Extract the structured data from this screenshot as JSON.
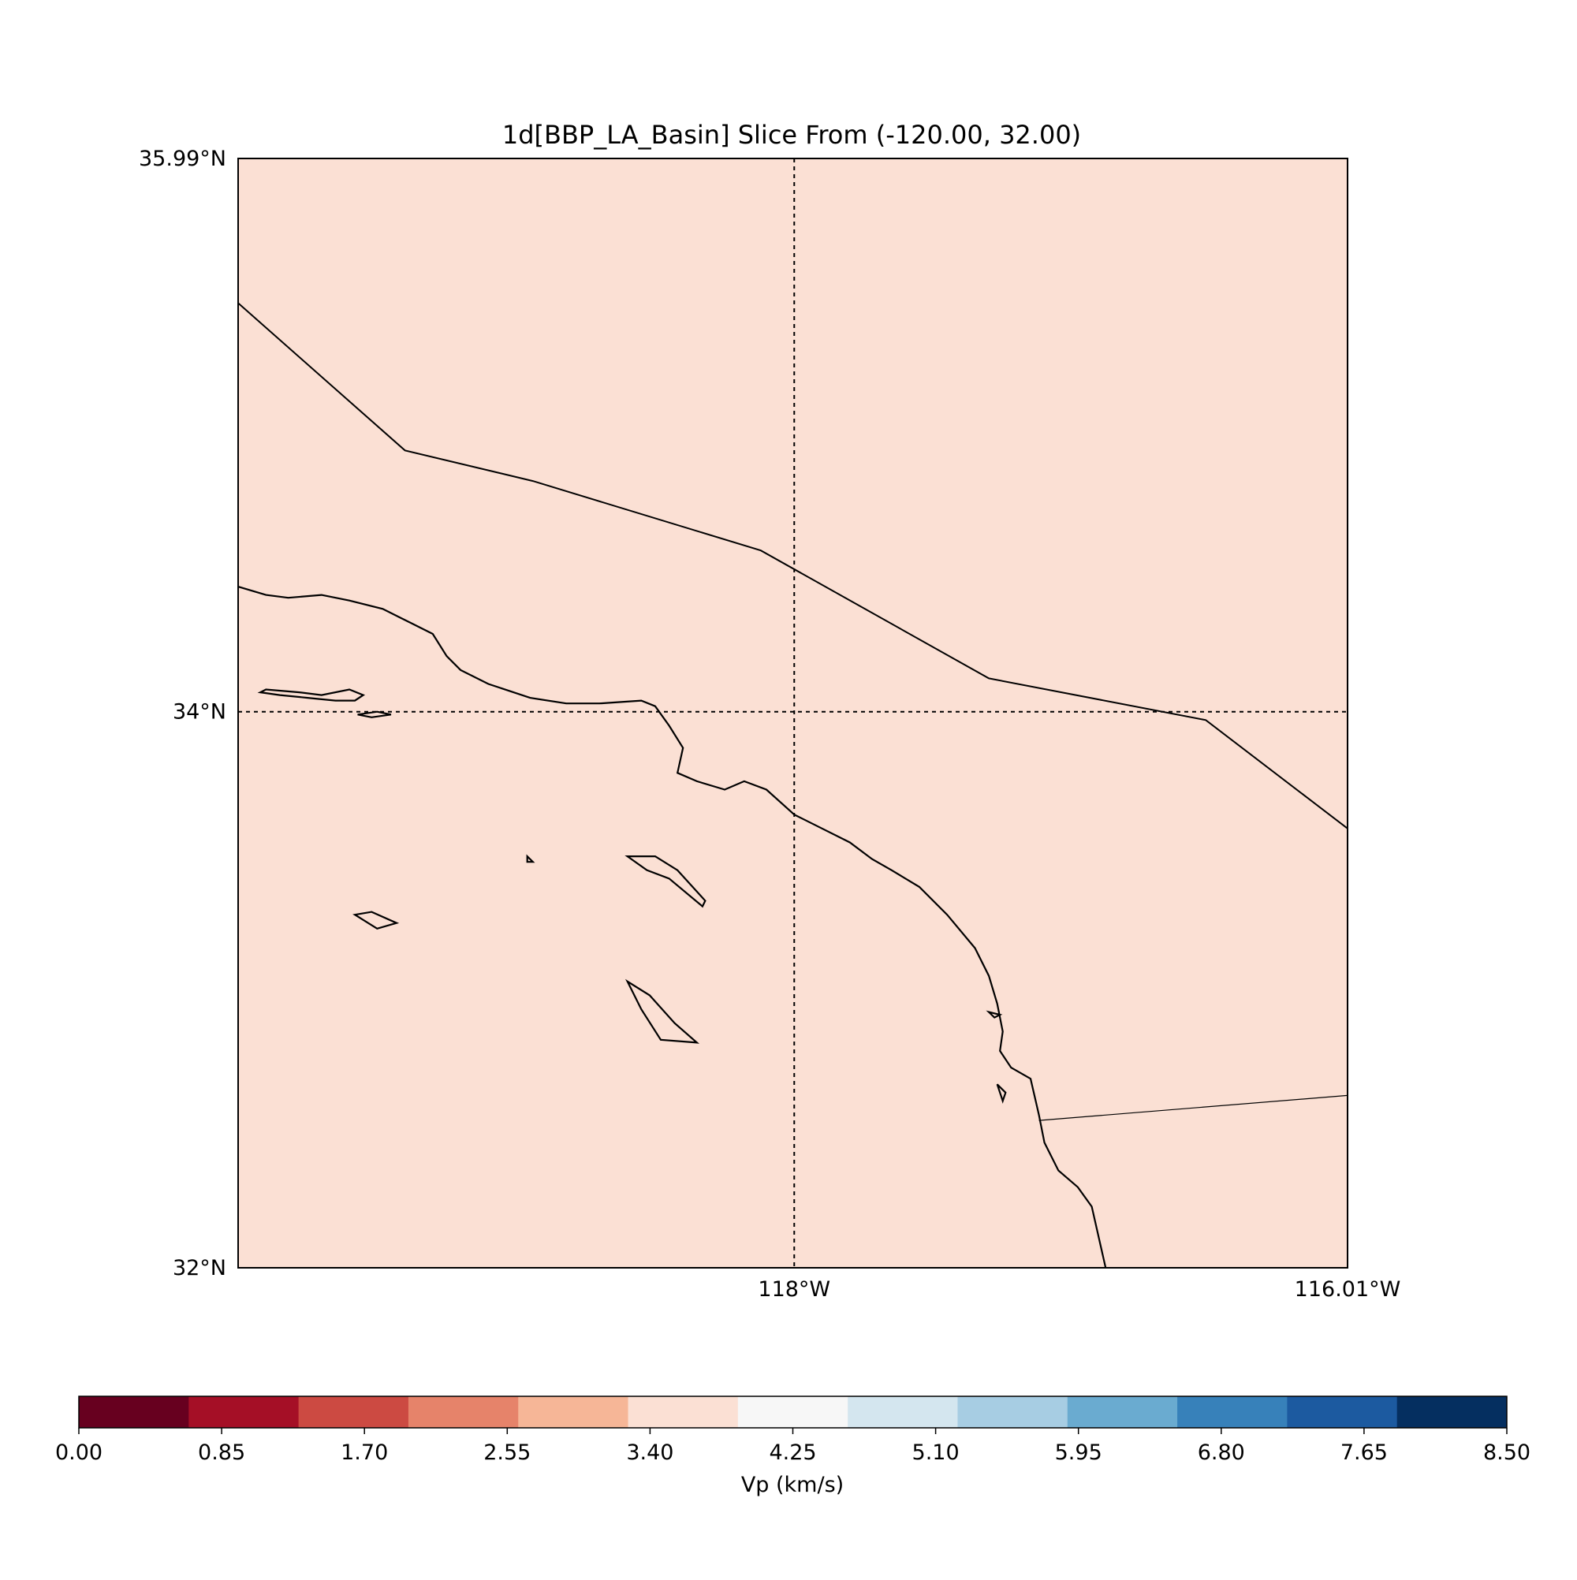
{
  "title": "1d[BBP_LA_Basin] Slice From (-120.00, 32.00)",
  "map": {
    "fill_color": "#fbe0d4",
    "lat_labels": [
      {
        "lat": 35.99,
        "text": "35.99°N"
      },
      {
        "lat": 34.0,
        "text": "34°N"
      },
      {
        "lat": 32.0,
        "text": "32°N"
      }
    ],
    "lon_labels": [
      {
        "lon": -118.0,
        "text": "118°W"
      },
      {
        "lon": -116.01,
        "text": "116.01°W"
      }
    ],
    "gridlines": {
      "lon": [
        -118.0
      ],
      "lat": [
        34.0
      ]
    },
    "extent": {
      "lon": [
        -120.0,
        -116.01
      ],
      "lat": [
        32.0,
        35.99
      ]
    },
    "boundaries": {
      "state_line": [
        [
          -120.0,
          35.47
        ],
        [
          -119.4,
          34.94
        ],
        [
          -118.94,
          34.83
        ],
        [
          -118.12,
          34.58
        ],
        [
          -117.3,
          34.12
        ],
        [
          -116.52,
          33.97
        ],
        [
          -116.01,
          33.58
        ]
      ],
      "international_border": [
        [
          -117.12,
          32.53
        ],
        [
          -116.01,
          32.62
        ]
      ]
    },
    "coastline": [
      [
        -120.0,
        34.45
      ],
      [
        -119.9,
        34.42
      ],
      [
        -119.82,
        34.41
      ],
      [
        -119.7,
        34.42
      ],
      [
        -119.6,
        34.4
      ],
      [
        -119.48,
        34.37
      ],
      [
        -119.38,
        34.32
      ],
      [
        -119.3,
        34.28
      ],
      [
        -119.25,
        34.2
      ],
      [
        -119.2,
        34.15
      ],
      [
        -119.1,
        34.1
      ],
      [
        -118.95,
        34.05
      ],
      [
        -118.82,
        34.03
      ],
      [
        -118.7,
        34.03
      ],
      [
        -118.55,
        34.04
      ],
      [
        -118.5,
        34.02
      ],
      [
        -118.45,
        33.95
      ],
      [
        -118.4,
        33.87
      ],
      [
        -118.42,
        33.78
      ],
      [
        -118.35,
        33.75
      ],
      [
        -118.25,
        33.72
      ],
      [
        -118.18,
        33.75
      ],
      [
        -118.1,
        33.72
      ],
      [
        -118.0,
        33.63
      ],
      [
        -117.9,
        33.58
      ],
      [
        -117.8,
        33.53
      ],
      [
        -117.72,
        33.47
      ],
      [
        -117.65,
        33.43
      ],
      [
        -117.55,
        33.37
      ],
      [
        -117.45,
        33.27
      ],
      [
        -117.35,
        33.15
      ],
      [
        -117.3,
        33.05
      ],
      [
        -117.27,
        32.95
      ],
      [
        -117.25,
        32.85
      ],
      [
        -117.26,
        32.78
      ],
      [
        -117.22,
        32.72
      ],
      [
        -117.15,
        32.68
      ],
      [
        -117.12,
        32.55
      ],
      [
        -117.1,
        32.45
      ],
      [
        -117.05,
        32.35
      ],
      [
        -116.98,
        32.29
      ],
      [
        -116.93,
        32.22
      ],
      [
        -116.88,
        32.0
      ]
    ],
    "islands": [
      [
        [
          -119.92,
          34.07
        ],
        [
          -119.85,
          34.06
        ],
        [
          -119.75,
          34.05
        ],
        [
          -119.65,
          34.04
        ],
        [
          -119.58,
          34.04
        ],
        [
          -119.55,
          34.06
        ],
        [
          -119.6,
          34.08
        ],
        [
          -119.7,
          34.06
        ],
        [
          -119.78,
          34.07
        ],
        [
          -119.9,
          34.08
        ]
      ],
      [
        [
          -119.57,
          33.99
        ],
        [
          -119.5,
          34.0
        ],
        [
          -119.45,
          33.99
        ],
        [
          -119.52,
          33.98
        ]
      ],
      [
        [
          -118.6,
          33.48
        ],
        [
          -118.53,
          33.43
        ],
        [
          -118.45,
          33.4
        ],
        [
          -118.33,
          33.3
        ],
        [
          -118.32,
          33.32
        ],
        [
          -118.42,
          33.43
        ],
        [
          -118.5,
          33.48
        ]
      ],
      [
        [
          -119.58,
          33.27
        ],
        [
          -119.5,
          33.22
        ],
        [
          -119.43,
          33.24
        ],
        [
          -119.52,
          33.28
        ]
      ],
      [
        [
          -118.6,
          33.03
        ],
        [
          -118.55,
          32.93
        ],
        [
          -118.48,
          32.82
        ],
        [
          -118.35,
          32.81
        ],
        [
          -118.43,
          32.88
        ],
        [
          -118.52,
          32.98
        ]
      ],
      [
        [
          -118.96,
          33.48
        ],
        [
          -118.94,
          33.46
        ],
        [
          -118.96,
          33.46
        ]
      ],
      [
        [
          -117.3,
          32.92
        ],
        [
          -117.26,
          32.91
        ],
        [
          -117.28,
          32.9
        ]
      ],
      [
        [
          -117.27,
          32.66
        ],
        [
          -117.25,
          32.6
        ],
        [
          -117.24,
          32.63
        ]
      ]
    ]
  },
  "colorbar": {
    "label": "Vp (km/s)",
    "min": 0.0,
    "max": 8.5,
    "colors": [
      "#67001f",
      "#a50f26",
      "#cc4a42",
      "#e6836a",
      "#f6b697",
      "#fbe0d4",
      "#f7f7f7",
      "#d4e6ef",
      "#a7cde3",
      "#6aabd0",
      "#3781ba",
      "#1c5aa0",
      "#052f60"
    ],
    "tick_labels": [
      {
        "value": 0.0,
        "text": "0.00"
      },
      {
        "value": 0.85,
        "text": "0.85"
      },
      {
        "value": 1.7,
        "text": "1.70"
      },
      {
        "value": 2.55,
        "text": "2.55"
      },
      {
        "value": 3.4,
        "text": "3.40"
      },
      {
        "value": 4.25,
        "text": "4.25"
      },
      {
        "value": 5.1,
        "text": "5.10"
      },
      {
        "value": 5.95,
        "text": "5.95"
      },
      {
        "value": 6.8,
        "text": "6.80"
      },
      {
        "value": 7.65,
        "text": "7.65"
      },
      {
        "value": 8.5,
        "text": "8.50"
      }
    ]
  }
}
